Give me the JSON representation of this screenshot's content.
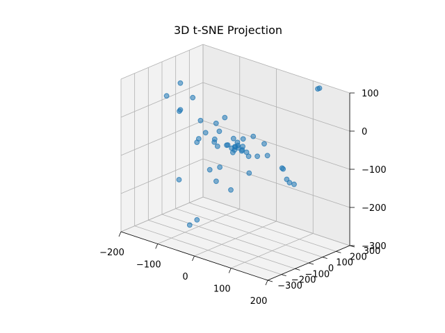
{
  "chart_data": {
    "type": "scatter",
    "title": "3D t-SNE Projection",
    "xlabel": "",
    "ylabel": "",
    "zlabel": "",
    "grid": true,
    "point_color": "#1f77b4",
    "x_ticks": [
      "−200",
      "−100",
      "0",
      "100",
      "200"
    ],
    "y_ticks": [
      "−300",
      "−200",
      "−100",
      "0",
      "100",
      "200",
      "300"
    ],
    "z_ticks": [
      "−300",
      "−200",
      "−100",
      "0",
      "100"
    ],
    "xlim": [
      -200,
      200
    ],
    "ylim": [
      -300,
      300
    ],
    "zlim": [
      -300,
      100
    ],
    "points": [
      {
        "x": 150,
        "y": 200,
        "z": 110
      },
      {
        "x": 153,
        "y": 205,
        "z": 112
      },
      {
        "x": -150,
        "y": 0,
        "z": 60
      },
      {
        "x": -120,
        "y": 10,
        "z": 30
      },
      {
        "x": -180,
        "y": -20,
        "z": 20
      },
      {
        "x": -160,
        "y": 20,
        "z": -20
      },
      {
        "x": -150,
        "y": 0,
        "z": -10
      },
      {
        "x": -40,
        "y": 30,
        "z": 0
      },
      {
        "x": -80,
        "y": -40,
        "z": -10
      },
      {
        "x": -60,
        "y": 20,
        "z": -20
      },
      {
        "x": -70,
        "y": -30,
        "z": -40
      },
      {
        "x": -40,
        "y": -10,
        "z": -30
      },
      {
        "x": -20,
        "y": 40,
        "z": -50
      },
      {
        "x": 10,
        "y": 30,
        "z": -40
      },
      {
        "x": 30,
        "y": 50,
        "z": -30
      },
      {
        "x": 60,
        "y": 50,
        "z": -40
      },
      {
        "x": -30,
        "y": -50,
        "z": -60
      },
      {
        "x": -50,
        "y": -20,
        "z": -60
      },
      {
        "x": -90,
        "y": -40,
        "z": -70
      },
      {
        "x": -100,
        "y": 0,
        "z": -70
      },
      {
        "x": -60,
        "y": 10,
        "z": -60
      },
      {
        "x": -20,
        "y": -10,
        "z": -60
      },
      {
        "x": 0,
        "y": 0,
        "z": -60
      },
      {
        "x": 5,
        "y": 5,
        "z": -55
      },
      {
        "x": -5,
        "y": 10,
        "z": -62
      },
      {
        "x": 10,
        "y": -5,
        "z": -58
      },
      {
        "x": -10,
        "y": 0,
        "z": -66
      },
      {
        "x": 0,
        "y": 15,
        "z": -50
      },
      {
        "x": 15,
        "y": 10,
        "z": -64
      },
      {
        "x": -15,
        "y": -15,
        "z": -57
      },
      {
        "x": 10,
        "y": 20,
        "z": -70
      },
      {
        "x": 20,
        "y": 0,
        "z": -52
      },
      {
        "x": -5,
        "y": -5,
        "z": -75
      },
      {
        "x": 5,
        "y": -20,
        "z": -63
      },
      {
        "x": 25,
        "y": 15,
        "z": -68
      },
      {
        "x": 40,
        "y": -10,
        "z": -70
      },
      {
        "x": 60,
        "y": 0,
        "z": -65
      },
      {
        "x": 80,
        "y": 20,
        "z": -60
      },
      {
        "x": 120,
        "y": 20,
        "z": -80
      },
      {
        "x": 122,
        "y": 22,
        "z": -82
      },
      {
        "x": 140,
        "y": 0,
        "z": -100
      },
      {
        "x": 170,
        "y": -60,
        "z": -90
      },
      {
        "x": 190,
        "y": -80,
        "z": -85
      },
      {
        "x": 60,
        "y": -60,
        "z": -100
      },
      {
        "x": -20,
        "y": -60,
        "z": -110
      },
      {
        "x": -40,
        "y": -80,
        "z": -120
      },
      {
        "x": -30,
        "y": -60,
        "z": -150
      },
      {
        "x": 10,
        "y": -60,
        "z": -160
      },
      {
        "x": -120,
        "y": -90,
        "z": -170
      },
      {
        "x": -50,
        "y": -200,
        "z": -250
      },
      {
        "x": -30,
        "y": -200,
        "z": -230
      }
    ]
  }
}
